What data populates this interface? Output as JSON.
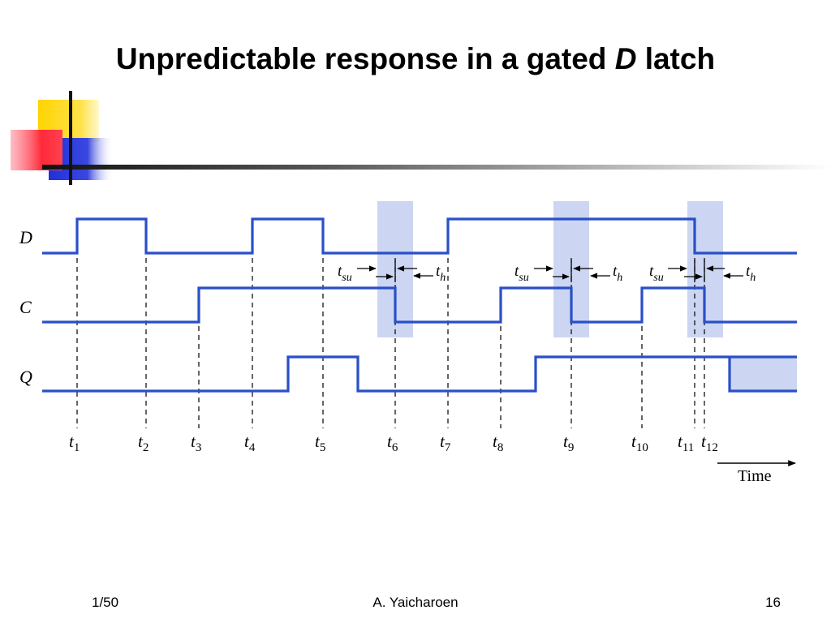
{
  "slide": {
    "title_main": "Unpredictable response in a gated ",
    "title_var": "D",
    "title_end": " latch"
  },
  "diagram": {
    "signals": [
      {
        "label": "D"
      },
      {
        "label": "C"
      },
      {
        "label": "Q"
      }
    ],
    "time_marks": [
      {
        "t": "t",
        "sub": "1"
      },
      {
        "t": "t",
        "sub": "2"
      },
      {
        "t": "t",
        "sub": "3"
      },
      {
        "t": "t",
        "sub": "4"
      },
      {
        "t": "t",
        "sub": "5"
      },
      {
        "t": "t",
        "sub": "6"
      },
      {
        "t": "t",
        "sub": "7"
      },
      {
        "t": "t",
        "sub": "8"
      },
      {
        "t": "t",
        "sub": "9"
      },
      {
        "t": "t",
        "sub": "10"
      },
      {
        "t": "t",
        "sub": "11"
      },
      {
        "t": "t",
        "sub": "12"
      }
    ],
    "timing_labels": [
      {
        "t": "t",
        "sub": "su"
      },
      {
        "t": "t",
        "sub": "h"
      }
    ],
    "time_axis_label": "Time",
    "colors": {
      "waveform": "#2a4fc8",
      "window_shade": "#ccd6f2",
      "undetermined_shade": "#ccd6f2"
    }
  },
  "footer": {
    "left": "1/50",
    "center": "A. Yaicharoen",
    "right": "16"
  }
}
